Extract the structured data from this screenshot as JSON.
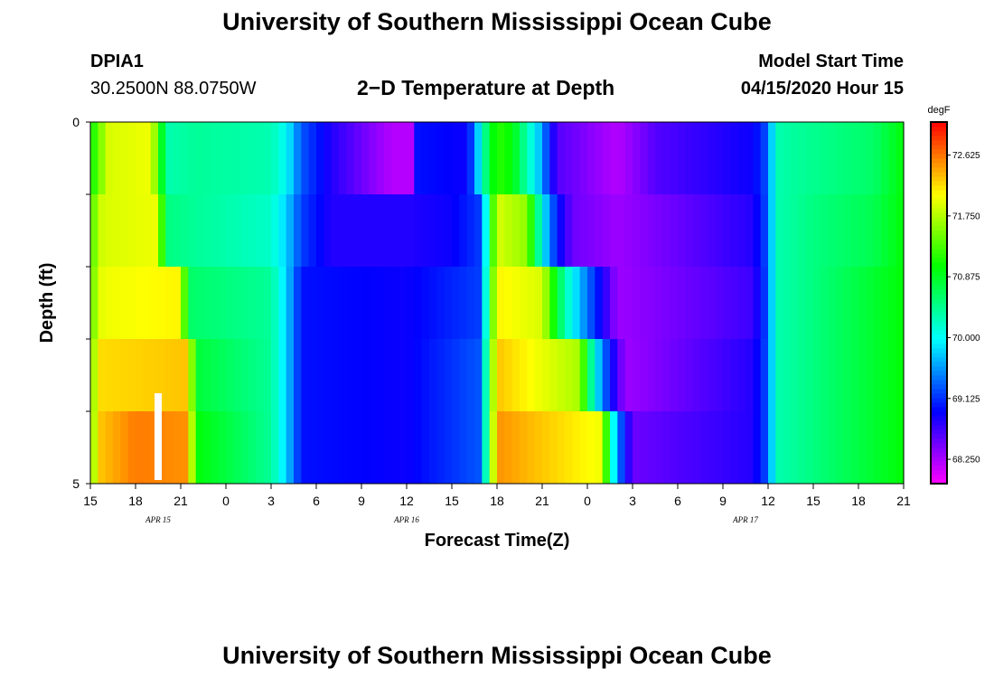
{
  "header": {
    "title": "University of Southern Mississippi Ocean Cube",
    "station": "DPIA1",
    "coords": "30.2500N 88.0750W",
    "subtitle": "2−D Temperature at Depth",
    "model_start_label": "Model Start Time",
    "model_start_value": "04/15/2020 Hour 15"
  },
  "footer": {
    "title": "University of Southern Mississippi Ocean Cube"
  },
  "chart_data": {
    "type": "heatmap",
    "title": "2-D Temperature at Depth",
    "xlabel": "Forecast Time(Z)",
    "ylabel": "Depth (ft)",
    "x_hours": [
      0,
      54
    ],
    "ylim": [
      0,
      5
    ],
    "x_tick_labels": [
      "15",
      "18",
      "21",
      "0",
      "3",
      "6",
      "9",
      "12",
      "15",
      "18",
      "21",
      "0",
      "3",
      "6",
      "9",
      "12",
      "15",
      "18",
      "21"
    ],
    "y_tick_labels": [
      "0",
      "5"
    ],
    "date_labels": [
      {
        "text": "APR  15",
        "hour": 4.5
      },
      {
        "text": "APR  16",
        "hour": 21
      },
      {
        "text": "APR  17",
        "hour": 43.5
      }
    ],
    "colorbar": {
      "unit": "degF",
      "min": 67.9,
      "max": 73.1,
      "tick_values": [
        72.625,
        71.75,
        70.875,
        70.0,
        69.125,
        68.25
      ],
      "tick_labels": [
        "72.625",
        "71.750",
        "70.875",
        "70.000",
        "69.125",
        "68.250"
      ]
    },
    "depth_rows": [
      0.25,
      1.25,
      2.25,
      3.25,
      4.25
    ],
    "row_breaks": [
      [
        [
          0,
          71.0
        ],
        [
          0.5,
          71.4
        ],
        [
          1.2,
          71.9
        ],
        [
          4,
          72.0
        ],
        [
          4.6,
          71.2
        ],
        [
          5,
          70.3
        ],
        [
          7,
          70.4
        ],
        [
          12,
          70.3
        ],
        [
          13,
          70.0
        ],
        [
          14,
          69.3
        ],
        [
          16,
          68.8
        ],
        [
          20,
          68.2
        ],
        [
          21.3,
          68.2
        ],
        [
          21.5,
          69.0
        ],
        [
          25,
          68.9
        ],
        [
          25.5,
          69.4
        ],
        [
          26,
          70.2
        ],
        [
          26.5,
          70.8
        ],
        [
          27,
          71.2
        ],
        [
          28,
          71.0
        ],
        [
          29,
          70.3
        ],
        [
          30,
          69.6
        ],
        [
          30.5,
          69.0
        ],
        [
          31,
          68.6
        ],
        [
          35,
          68.2
        ],
        [
          37.5,
          68.6
        ],
        [
          44,
          68.9
        ],
        [
          45,
          69.3
        ],
        [
          45.5,
          70.3
        ],
        [
          47,
          70.4
        ],
        [
          52,
          70.6
        ],
        [
          54,
          71.0
        ]
      ],
      [
        [
          0,
          71.3
        ],
        [
          0.8,
          71.9
        ],
        [
          4.5,
          72.0
        ],
        [
          5,
          70.5
        ],
        [
          7,
          70.4
        ],
        [
          12,
          70.2
        ],
        [
          13,
          69.8
        ],
        [
          14,
          69.2
        ],
        [
          16,
          68.8
        ],
        [
          21,
          68.8
        ],
        [
          24,
          68.9
        ],
        [
          26,
          69.2
        ],
        [
          26.5,
          70.8
        ],
        [
          27,
          71.9
        ],
        [
          29,
          71.6
        ],
        [
          30,
          70.0
        ],
        [
          31,
          69.0
        ],
        [
          32,
          68.5
        ],
        [
          35,
          68.3
        ],
        [
          44,
          68.8
        ],
        [
          45,
          69.3
        ],
        [
          45.5,
          70.3
        ],
        [
          48,
          70.5
        ],
        [
          52,
          70.7
        ],
        [
          54,
          71.0
        ]
      ],
      [
        [
          0,
          71.4
        ],
        [
          0.8,
          72.0
        ],
        [
          6,
          72.1
        ],
        [
          6.5,
          70.6
        ],
        [
          12,
          70.4
        ],
        [
          13,
          69.8
        ],
        [
          14,
          69.0
        ],
        [
          21,
          68.9
        ],
        [
          26,
          69.2
        ],
        [
          26.5,
          71.0
        ],
        [
          27,
          72.1
        ],
        [
          30,
          71.9
        ],
        [
          31.5,
          70.3
        ],
        [
          33,
          69.4
        ],
        [
          35,
          68.3
        ],
        [
          44,
          68.7
        ],
        [
          45,
          69.3
        ],
        [
          45.5,
          70.3
        ],
        [
          48,
          70.5
        ],
        [
          54,
          71.0
        ]
      ],
      [
        [
          0,
          71.5
        ],
        [
          0.7,
          72.2
        ],
        [
          6.5,
          72.3
        ],
        [
          7,
          70.8
        ],
        [
          12,
          70.4
        ],
        [
          13,
          69.8
        ],
        [
          14,
          69.0
        ],
        [
          21,
          68.9
        ],
        [
          26,
          69.3
        ],
        [
          26.5,
          71.2
        ],
        [
          27,
          72.3
        ],
        [
          32.5,
          71.7
        ],
        [
          33.5,
          70.0
        ],
        [
          34.5,
          69.0
        ],
        [
          35.5,
          68.3
        ],
        [
          44,
          68.8
        ],
        [
          45,
          69.3
        ],
        [
          45.5,
          70.3
        ],
        [
          48,
          70.5
        ],
        [
          54,
          71.0
        ]
      ],
      [
        [
          0,
          71.5
        ],
        [
          0.7,
          72.3
        ],
        [
          3,
          72.6
        ],
        [
          6.5,
          72.5
        ],
        [
          7,
          71.0
        ],
        [
          12,
          70.4
        ],
        [
          13,
          69.8
        ],
        [
          14,
          69.0
        ],
        [
          21,
          68.9
        ],
        [
          26,
          69.3
        ],
        [
          26.5,
          71.2
        ],
        [
          27,
          72.5
        ],
        [
          34,
          72.0
        ],
        [
          34.5,
          70.5
        ],
        [
          35,
          69.5
        ],
        [
          36,
          68.5
        ],
        [
          44,
          68.8
        ],
        [
          45,
          69.3
        ],
        [
          45.5,
          70.3
        ],
        [
          48,
          70.5
        ],
        [
          54,
          71.0
        ]
      ]
    ],
    "marker": {
      "hour": 4.5,
      "depth_top": 3.75,
      "depth_bottom": 4.95
    }
  }
}
